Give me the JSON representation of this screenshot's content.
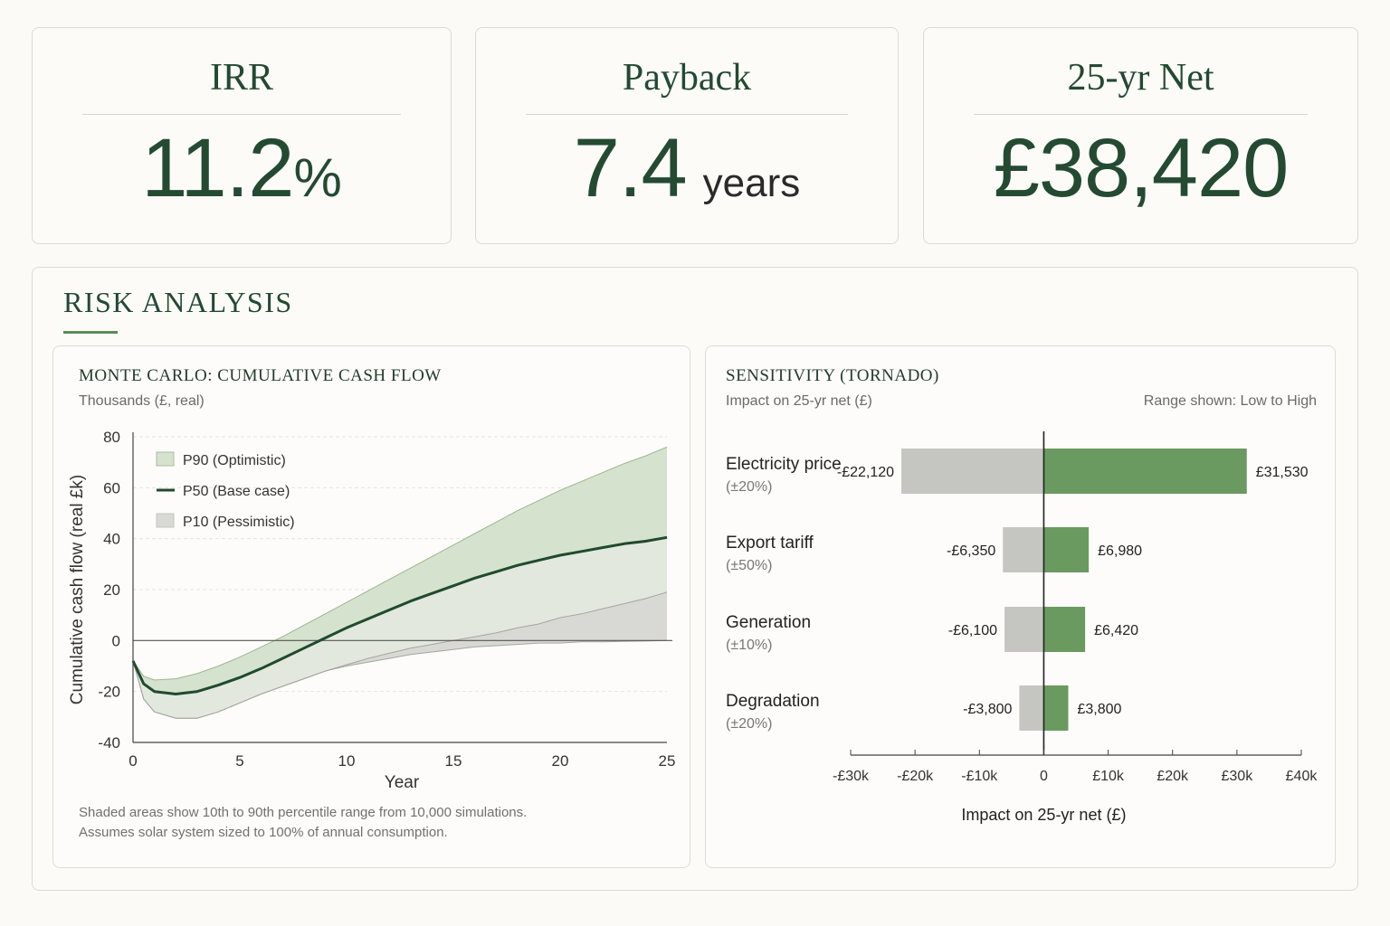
{
  "kpis": {
    "irr": {
      "title": "IRR",
      "value": "11.2",
      "unit": "%"
    },
    "payback": {
      "title": "Payback",
      "value": "7.4",
      "unit": "years"
    },
    "net": {
      "title": "25-yr Net",
      "value": "£38,420"
    }
  },
  "risk": {
    "title": "RISK ANALYSIS",
    "monte_carlo": {
      "title": "MONTE CARLO: CUMULATIVE CASH FLOW",
      "subtitle": "Thousands (£, real)",
      "note_line1": "Shaded areas show 10th to 90th percentile range from 10,000 simulations.",
      "note_line2": "Assumes solar system sized to 100% of annual consumption."
    },
    "tornado": {
      "title": "SENSITIVITY (TORNADO)",
      "subtitle": "Impact on 25-yr net (£)",
      "range_note": "Range shown: Low to High"
    }
  },
  "chart_data": [
    {
      "type": "area",
      "title": "MONTE CARLO: CUMULATIVE CASH FLOW",
      "subtitle": "Thousands (£, real)",
      "xlabel": "Year",
      "ylabel": "Cumulative cash flow (real £k)",
      "xlim": [
        0,
        25
      ],
      "ylim": [
        -40,
        80
      ],
      "x_ticks": [
        0,
        5,
        10,
        15,
        20,
        25
      ],
      "y_ticks": [
        80,
        60,
        40,
        20,
        0,
        -20,
        -40
      ],
      "legend_position": "top-left",
      "colors": {
        "p90": "#d5e2cd",
        "p50": "#1f4a2e",
        "p10": "#d8d8d4"
      },
      "x": [
        0,
        0.5,
        1,
        2,
        3,
        4,
        5,
        6,
        7,
        8,
        9,
        10,
        11,
        12,
        13,
        14,
        15,
        16,
        17,
        18,
        19,
        20,
        21,
        22,
        23,
        24,
        25
      ],
      "series": [
        {
          "name": "P90 (Optimistic)",
          "values": [
            -8,
            -14,
            -15.5,
            -15,
            -13,
            -10,
            -6.5,
            -2.5,
            1.5,
            6,
            10.5,
            15,
            19.5,
            24,
            28.5,
            33,
            37.5,
            42,
            46.5,
            51,
            55,
            59,
            62.5,
            66,
            69.5,
            72.5,
            76
          ]
        },
        {
          "name": "P50 (Base case)",
          "values": [
            -8,
            -17,
            -20,
            -21,
            -20,
            -17.5,
            -14.5,
            -11,
            -7,
            -3,
            1,
            5,
            8.5,
            12,
            15.5,
            18.5,
            21.5,
            24.5,
            27,
            29.5,
            31.5,
            33.5,
            35,
            36.5,
            38,
            39,
            40.5
          ]
        },
        {
          "name": "P10 (Pessimistic)",
          "values": [
            -8,
            -23,
            -28,
            -30.5,
            -30.5,
            -28,
            -24.5,
            -21,
            -18,
            -15,
            -12,
            -9.5,
            -7,
            -5,
            -3,
            -1.5,
            0,
            1.5,
            3,
            5,
            6.5,
            9,
            10.5,
            12.5,
            14.5,
            16.5,
            19
          ]
        },
        {
          "name": "",
          "values": [
            -8,
            -23,
            -28,
            -30.5,
            -30.5,
            -28,
            -24.5,
            -21,
            -18,
            -15,
            -12,
            -10,
            -8.5,
            -7,
            -5.5,
            -4.5,
            -3.5,
            -2.5,
            -2,
            -1.5,
            -1,
            -1,
            -0.5,
            -0.5,
            -0.3,
            -0.2,
            0
          ]
        }
      ]
    },
    {
      "type": "bar",
      "orientation": "horizontal",
      "title": "SENSITIVITY (TORNADO)",
      "subtitle": "Impact on 25-yr net (£)",
      "xlabel": "Impact on 25-yr net (£)",
      "xlim": [
        -30000,
        40000
      ],
      "x_tick_labels": [
        "-£30k",
        "-£20k",
        "-£10k",
        "0",
        "£10k",
        "£20k",
        "£30k",
        "£40k"
      ],
      "x_ticks": [
        -30000,
        -20000,
        -10000,
        0,
        10000,
        20000,
        30000,
        40000
      ],
      "colors": {
        "low": "#c5c5c1",
        "high": "#6a9a5f"
      },
      "categories": [
        {
          "name": "Electricity price",
          "range": "(±20%)",
          "low": -22120,
          "high": 31530,
          "low_label": "-£22,120",
          "high_label": "£31,530"
        },
        {
          "name": "Export tariff",
          "range": "(±50%)",
          "low": -6350,
          "high": 6980,
          "low_label": "-£6,350",
          "high_label": "£6,980"
        },
        {
          "name": "Generation",
          "range": "(±10%)",
          "low": -6100,
          "high": 6420,
          "low_label": "-£6,100",
          "high_label": "£6,420"
        },
        {
          "name": "Degradation",
          "range": "(±20%)",
          "low": -3800,
          "high": 3800,
          "low_label": "-£3,800",
          "high_label": "£3,800"
        }
      ]
    }
  ]
}
